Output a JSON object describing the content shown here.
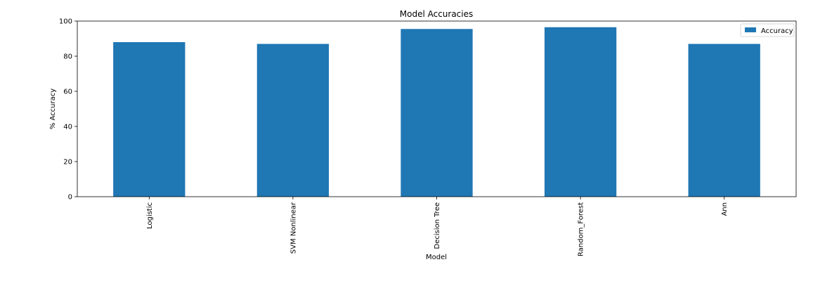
{
  "chart_data": {
    "type": "bar",
    "title": "Model Accuracies",
    "xlabel": "Model",
    "ylabel": "% Accuracy",
    "categories": [
      "Logistic",
      "SVM Nonlinear",
      "Decision Tree",
      "Random_Forest",
      "Ann"
    ],
    "series": [
      {
        "name": "Accuracy",
        "values": [
          88,
          87,
          95.5,
          96.5,
          87
        ],
        "color": "#1f77b4"
      }
    ],
    "ylim": [
      0,
      100
    ],
    "yticks": [
      0,
      20,
      40,
      60,
      80,
      100
    ],
    "grid": false,
    "legend": "top-right"
  }
}
